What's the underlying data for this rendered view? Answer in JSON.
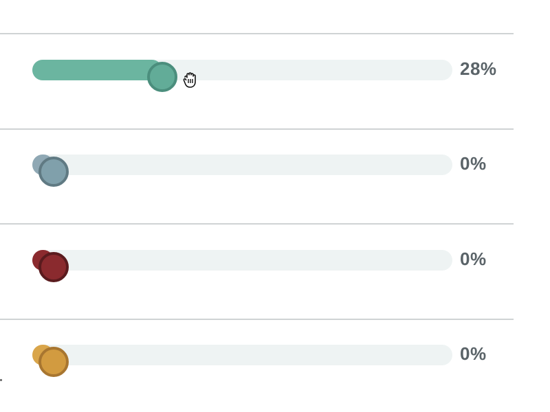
{
  "sliders": [
    {
      "id": "slider-1",
      "value": 28,
      "value_label": "28%",
      "fill_color": "#6bb5a0",
      "thumb_color": "#62ac98",
      "thumb_border": "#4b8e7d",
      "state": "dragging"
    },
    {
      "id": "slider-2",
      "value": 0,
      "value_label": "0%",
      "fill_color": "#8fa8b4",
      "thumb_color": "#80a0ab",
      "thumb_border": "#607a83",
      "state": "idle"
    },
    {
      "id": "slider-3",
      "value": 0,
      "value_label": "0%",
      "fill_color": "#8b2a2e",
      "thumb_color": "#8a2a2e",
      "thumb_border": "#5a1b1e",
      "state": "idle"
    },
    {
      "id": "slider-4",
      "value": 0,
      "value_label": "0%",
      "fill_color": "#d9a54a",
      "thumb_color": "#d29b40",
      "thumb_border": "#a87630",
      "state": "idle"
    }
  ],
  "track_color": "#eef3f3",
  "divider_color": "#cfd3d4",
  "cursor": {
    "icon": "grab-hand-icon"
  }
}
